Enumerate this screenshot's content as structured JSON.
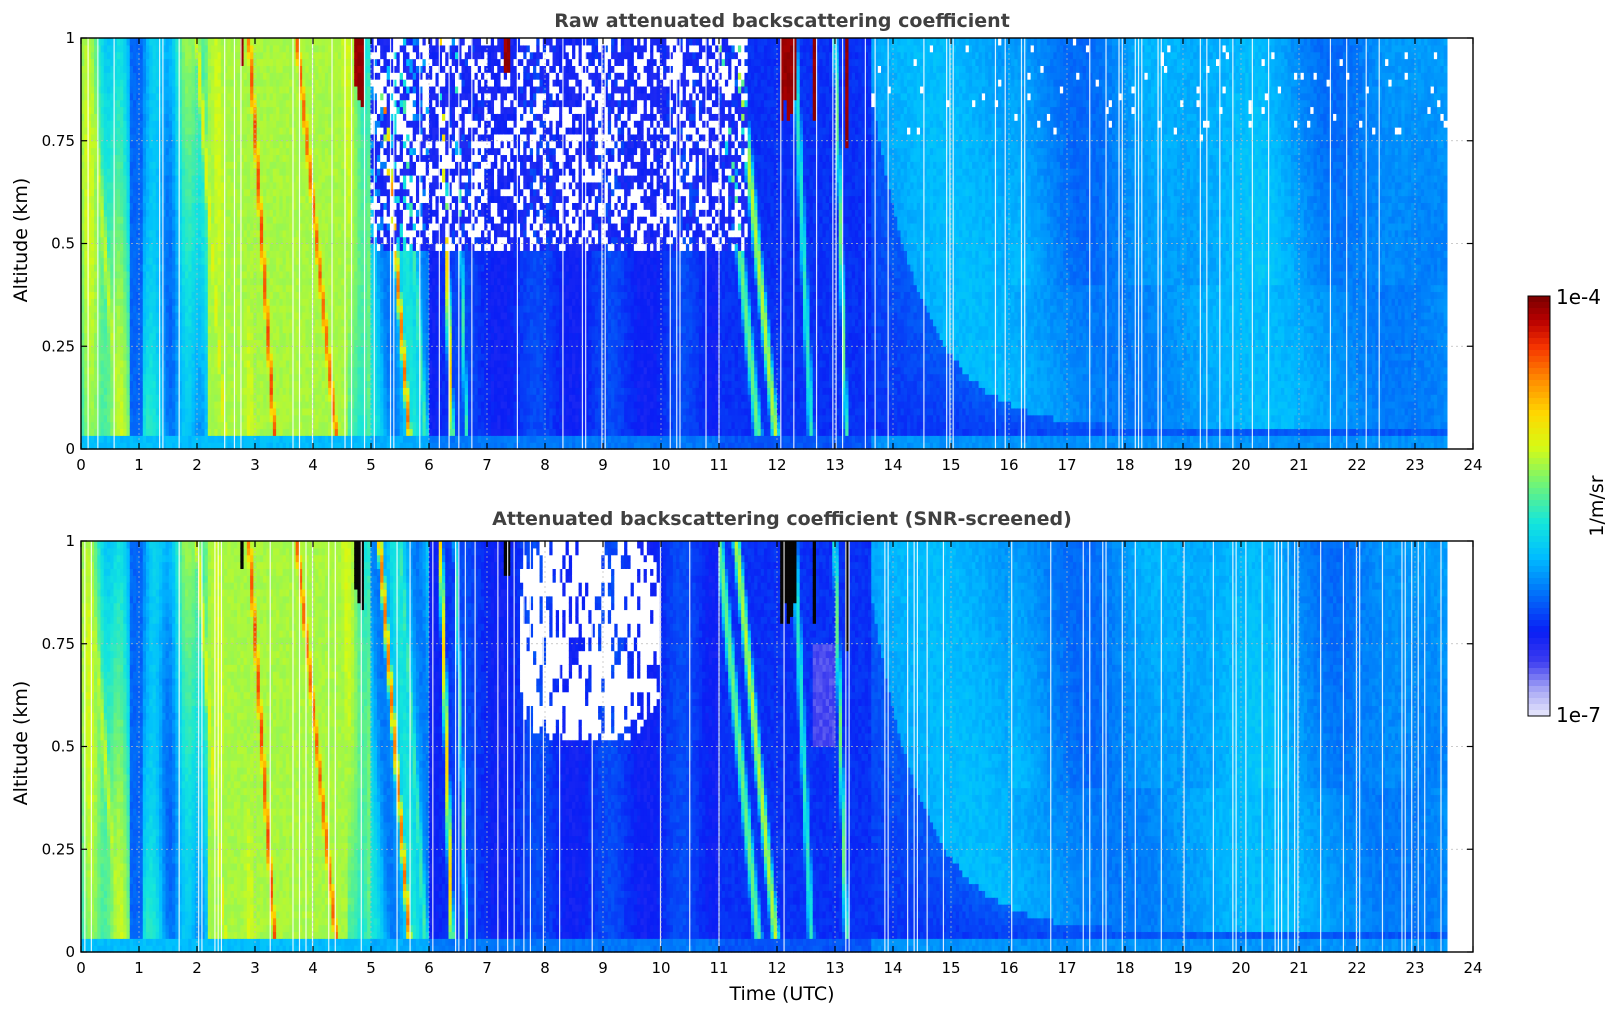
{
  "figure": {
    "colorbar": {
      "max_label": "1e-4",
      "min_label": "1e-7",
      "unit_label": "1/m/sr",
      "vmin": 1e-07,
      "vmax": 0.0001,
      "scale": "log",
      "colormap": "jet with pale-lavender low end"
    }
  },
  "chart_data": [
    {
      "type": "heatmap",
      "title": "Raw attenuated backscattering coefficient",
      "xlabel": "",
      "ylabel": "Altitude (km)",
      "xlim": [
        0,
        24
      ],
      "ylim": [
        0,
        1
      ],
      "xticks": [
        0,
        1,
        2,
        3,
        4,
        5,
        6,
        7,
        8,
        9,
        10,
        11,
        12,
        13,
        14,
        15,
        16,
        17,
        18,
        19,
        20,
        21,
        22,
        23,
        24
      ],
      "yticks": [
        0,
        0.25,
        0.5,
        0.75,
        1
      ],
      "ytick_labels": [
        "0",
        "0.25",
        "0.5",
        "0.75",
        "1"
      ],
      "grid": true,
      "data_extent_hours": [
        0,
        23.55
      ],
      "screened": false,
      "features": [
        {
          "kind": "falling-streak",
          "t_top": 2.9,
          "t_bottom": 3.35,
          "peak": "red"
        },
        {
          "kind": "falling-streak",
          "t_top": 3.7,
          "t_bottom": 4.4,
          "peak": "red"
        },
        {
          "kind": "falling-streak",
          "t_top": 5.2,
          "t_bottom": 5.7,
          "peak": "orange"
        },
        {
          "kind": "cloud-top-patch",
          "t": 4.8,
          "alt": [
            0.85,
            1.0
          ],
          "level": "dark-red"
        },
        {
          "kind": "cloud-top-patch",
          "t": 7.35,
          "alt": [
            0.93,
            1.0
          ],
          "level": "dark-red"
        },
        {
          "kind": "cloud-top-patch",
          "t": 12.2,
          "alt": [
            0.82,
            1.0
          ],
          "level": "dark-red"
        },
        {
          "kind": "noise-region",
          "t": [
            5.0,
            11.5
          ],
          "alt": [
            0.45,
            1.0
          ]
        },
        {
          "kind": "boundary-layer-growth",
          "t": [
            13.5,
            23.55
          ],
          "note": "lower blue layer decays from ~0.9 km at 13.5 UTC to ~0.05 km by 16 UTC"
        }
      ]
    },
    {
      "type": "heatmap",
      "title": "Attenuated backscattering coefficient (SNR-screened)",
      "xlabel": "Time (UTC)",
      "ylabel": "Altitude (km)",
      "xlim": [
        0,
        24
      ],
      "ylim": [
        0,
        1
      ],
      "xticks": [
        0,
        1,
        2,
        3,
        4,
        5,
        6,
        7,
        8,
        9,
        10,
        11,
        12,
        13,
        14,
        15,
        16,
        17,
        18,
        19,
        20,
        21,
        22,
        23,
        24
      ],
      "yticks": [
        0,
        0.25,
        0.5,
        0.75,
        1
      ],
      "ytick_labels": [
        "0",
        "0.25",
        "0.5",
        "0.75",
        "1"
      ],
      "grid": true,
      "data_extent_hours": [
        0,
        23.55
      ],
      "screened": true,
      "features": [
        {
          "kind": "falling-streak",
          "t_top": 2.9,
          "t_bottom": 3.35,
          "peak": "red"
        },
        {
          "kind": "falling-streak",
          "t_top": 3.7,
          "t_bottom": 4.4,
          "peak": "red"
        },
        {
          "kind": "falling-streak",
          "t_top": 5.2,
          "t_bottom": 5.7,
          "peak": "orange"
        },
        {
          "kind": "screened-saturated",
          "t": 4.8,
          "alt": [
            0.85,
            1.0
          ],
          "level": "black"
        },
        {
          "kind": "screened-saturated",
          "t": 12.2,
          "alt": [
            0.82,
            1.0
          ],
          "level": "black"
        },
        {
          "kind": "masked-region",
          "t": [
            7.5,
            10.0
          ],
          "alt": [
            0.5,
            1.0
          ]
        },
        {
          "kind": "boundary-layer-growth",
          "t": [
            13.5,
            23.55
          ],
          "note": "lower blue layer decays from ~0.9 km at 13.5 UTC to ~0.05 km by 16 UTC"
        }
      ]
    }
  ]
}
